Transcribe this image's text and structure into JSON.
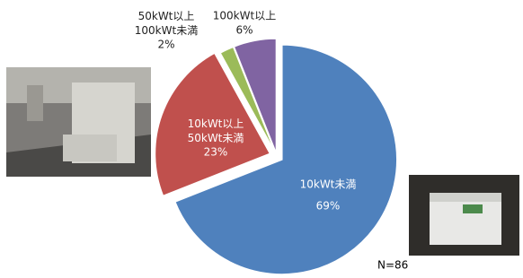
{
  "chart_data": {
    "type": "pie",
    "categories": [
      "10kWt未満",
      "10kWt以上\n50kWt未満",
      "50kWt以上\n100kWt未満",
      "100kWt以上"
    ],
    "values": [
      69,
      23,
      2,
      6
    ],
    "value_labels": [
      "69%",
      "23%",
      "2%",
      "6%"
    ],
    "colors": [
      "#4f81bd",
      "#c0504d",
      "#9bbb59",
      "#8064a2"
    ],
    "annotation": "N=86"
  }
}
